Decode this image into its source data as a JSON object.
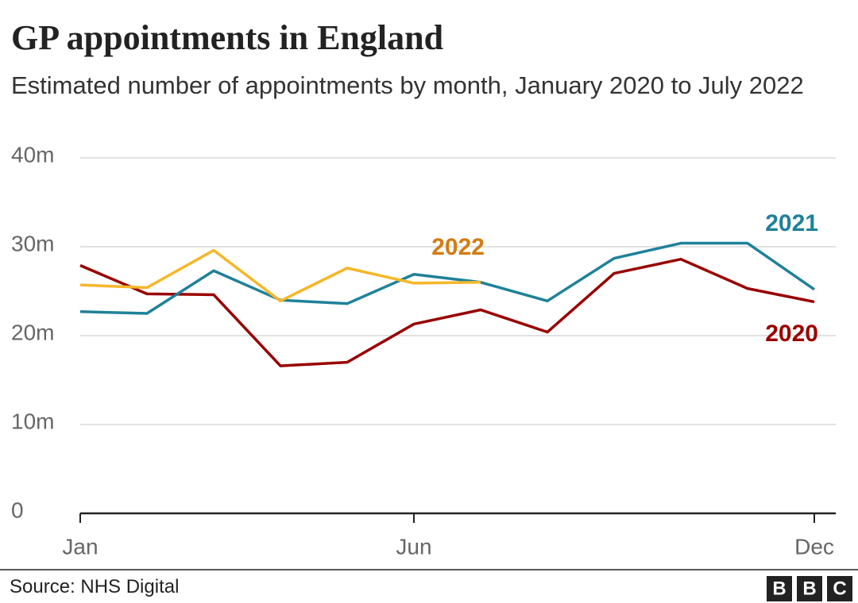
{
  "chart_data": {
    "type": "line",
    "title": "GP appointments in England",
    "subtitle": "Estimated number of appointments by month, January 2020 to July 2022",
    "source": "Source: NHS Digital",
    "logo": [
      "B",
      "B",
      "C"
    ],
    "categories": [
      "Jan",
      null,
      null,
      null,
      null,
      "Jun",
      null,
      null,
      null,
      null,
      null,
      "Dec"
    ],
    "ylim": [
      0,
      40
    ],
    "yticks": [
      0,
      {
        "value": 10,
        "label": "10m"
      },
      {
        "value": 20,
        "label": "20m"
      },
      {
        "value": 30,
        "label": "30m"
      },
      {
        "value": 40,
        "label": "40m"
      }
    ],
    "grid": true,
    "series": [
      {
        "name": "2020",
        "color": "#990000",
        "label_color": "#990000",
        "values": [
          27.9,
          24.7,
          24.6,
          16.6,
          17.0,
          21.3,
          22.9,
          20.4,
          27.0,
          28.6,
          25.3,
          23.8
        ]
      },
      {
        "name": "2021",
        "color": "#1f8199",
        "label_color": "#1f8199",
        "values": [
          22.7,
          22.5,
          27.3,
          24.0,
          23.6,
          26.9,
          26.0,
          23.9,
          28.7,
          30.4,
          30.4,
          25.2
        ]
      },
      {
        "name": "2022",
        "color": "#f5b729",
        "label_color": "#d27c13",
        "values": [
          25.7,
          25.4,
          29.6,
          23.9,
          27.6,
          25.9,
          26.0,
          null,
          null,
          null,
          null,
          null
        ]
      }
    ]
  }
}
